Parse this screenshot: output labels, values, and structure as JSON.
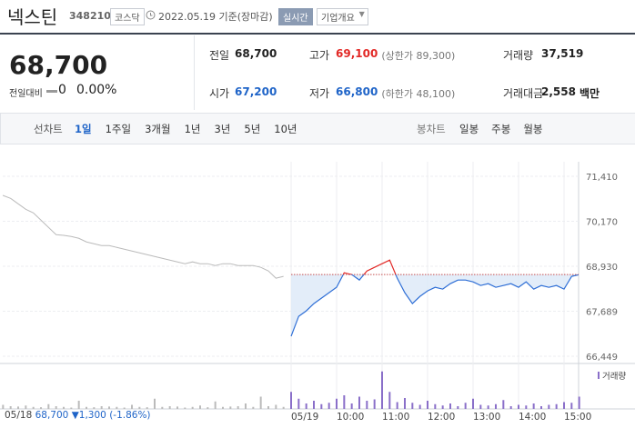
{
  "header": {
    "name": "넥스틴",
    "code": "348210",
    "market": "코스닥",
    "date": "2022.05.19 기준(장마감)",
    "realtime": "실시간",
    "company": "기업개요"
  },
  "price": {
    "current": "68,700",
    "change_label": "전일대비",
    "change": "0",
    "change_pct": "0.00%"
  },
  "stats": {
    "rows": [
      [
        {
          "label": "전일",
          "value": "68,700"
        },
        {
          "label": "고가",
          "value": "69,100",
          "note": "(상한가 89,300)"
        },
        {
          "label": "거래량",
          "value": "37,519"
        }
      ],
      [
        {
          "label": "시가",
          "value": "67,200"
        },
        {
          "label": "저가",
          "value": "66,800",
          "note": "(하한가 48,100)"
        },
        {
          "label": "거래대금",
          "value": "2,558",
          "note": "백만"
        }
      ]
    ]
  },
  "tabs": {
    "line_label": "선차트",
    "line_items": [
      "1일",
      "1주일",
      "3개월",
      "1년",
      "3년",
      "5년",
      "10년"
    ],
    "candle_label": "봉차트",
    "candle_items": [
      "일봉",
      "주봉",
      "월봉"
    ]
  },
  "chart_data": [
    {
      "type": "line",
      "categories": [
        "05/18",
        null,
        null,
        null,
        null,
        null,
        null,
        null,
        null,
        null,
        null,
        null,
        null,
        null,
        null,
        null,
        null,
        null,
        null,
        null,
        null,
        null,
        null,
        null,
        null,
        null,
        null,
        null,
        null,
        null,
        null,
        null,
        null,
        null,
        null,
        null,
        null,
        null,
        null,
        "05/19",
        null,
        null,
        null,
        null,
        null,
        "10:00",
        null,
        null,
        null,
        null,
        null,
        "11:00",
        null,
        null,
        null,
        null,
        null,
        "12:00",
        null,
        null,
        null,
        null,
        null,
        "13:00",
        null,
        null,
        null,
        null,
        null,
        "14:00",
        null,
        null,
        null,
        null,
        null,
        "15:00",
        null,
        null
      ],
      "series": [
        {
          "color": "#bbbbbb",
          "values": [
            70900,
            70880,
            70800,
            70650,
            70500,
            70400,
            70200,
            70000,
            69800,
            69780,
            69750,
            69700,
            69600,
            69550,
            69500,
            69500,
            69450,
            69400,
            69350,
            69300,
            69250,
            69200,
            69150,
            69100,
            69050,
            69000,
            69050,
            69000,
            69000,
            68950,
            69000,
            69000,
            68950,
            68950,
            68950,
            68900,
            68800,
            68600,
            68650,
            null,
            null,
            null,
            null,
            null,
            null,
            null,
            null,
            null,
            null,
            null,
            null,
            null,
            null,
            null,
            null,
            null,
            null,
            null,
            null,
            null,
            null,
            null,
            null,
            null,
            null,
            null,
            null,
            null,
            null,
            null,
            null,
            null,
            null,
            null,
            null,
            null,
            null,
            null
          ]
        },
        {
          "color": "#2f6fd6",
          "color_above": "#e22926",
          "values": [
            null,
            null,
            null,
            null,
            null,
            null,
            null,
            null,
            null,
            null,
            null,
            null,
            null,
            null,
            null,
            null,
            null,
            null,
            null,
            null,
            null,
            null,
            null,
            null,
            null,
            null,
            null,
            null,
            null,
            null,
            null,
            null,
            null,
            null,
            null,
            null,
            null,
            null,
            null,
            67000,
            67550,
            67700,
            67900,
            68050,
            68200,
            68350,
            68750,
            68700,
            68550,
            68800,
            68900,
            69000,
            69100,
            68600,
            68200,
            67900,
            68100,
            68250,
            68350,
            68300,
            68450,
            68550,
            68550,
            68500,
            68400,
            68450,
            68350,
            68400,
            68450,
            68350,
            68500,
            68300,
            68400,
            68350,
            68400,
            68300,
            68650,
            68700
          ]
        }
      ],
      "reference": 68700,
      "ylim": [
        66250,
        71810
      ],
      "yticks": [
        {
          "value": 71410,
          "label": "71,410"
        },
        {
          "value": 70170,
          "label": "70,170"
        },
        {
          "value": 68930,
          "label": "68,930"
        },
        {
          "value": 67689,
          "label": "67,689"
        },
        {
          "value": 66449,
          "label": "66,449"
        }
      ],
      "grid": true
    },
    {
      "type": "bar",
      "title": "거래량",
      "series": [
        {
          "color": "#bbbbbb",
          "values": [
            900,
            600,
            400,
            350,
            500,
            300,
            250,
            700,
            400,
            300,
            200,
            1200,
            300,
            250,
            400,
            350,
            300,
            200,
            600,
            300,
            250,
            1500,
            300,
            400,
            350,
            200,
            300,
            500,
            250,
            1100,
            300,
            350,
            400,
            800,
            300,
            1800,
            400,
            600,
            300,
            null,
            null,
            null,
            null,
            null,
            null,
            null,
            null,
            null,
            null,
            null,
            null,
            null,
            null,
            null,
            null,
            null,
            null,
            null,
            null,
            null,
            null,
            null,
            null,
            null,
            null,
            null,
            null,
            null,
            null,
            null,
            null,
            null,
            null,
            null,
            null,
            null,
            null,
            null
          ]
        },
        {
          "color": "#8a6fc9",
          "values": [
            null,
            null,
            null,
            null,
            null,
            null,
            null,
            null,
            null,
            null,
            null,
            null,
            null,
            null,
            null,
            null,
            null,
            null,
            null,
            null,
            null,
            null,
            null,
            null,
            null,
            null,
            null,
            null,
            null,
            null,
            null,
            null,
            null,
            null,
            null,
            null,
            null,
            null,
            null,
            2500,
            1500,
            800,
            1200,
            700,
            900,
            1500,
            2000,
            800,
            1800,
            1200,
            1400,
            5500,
            2500,
            1000,
            1600,
            900,
            600,
            1200,
            700,
            500,
            800,
            400,
            900,
            1500,
            600,
            500,
            700,
            1300,
            400,
            600,
            500,
            800,
            400,
            600,
            700,
            1000,
            900,
            1800
          ]
        }
      ],
      "ylim": [
        0,
        6000
      ]
    }
  ],
  "footer": {
    "date": "05/18",
    "price": "68,700",
    "change": "▼1,300",
    "change_pct": "(-1.86%)"
  }
}
